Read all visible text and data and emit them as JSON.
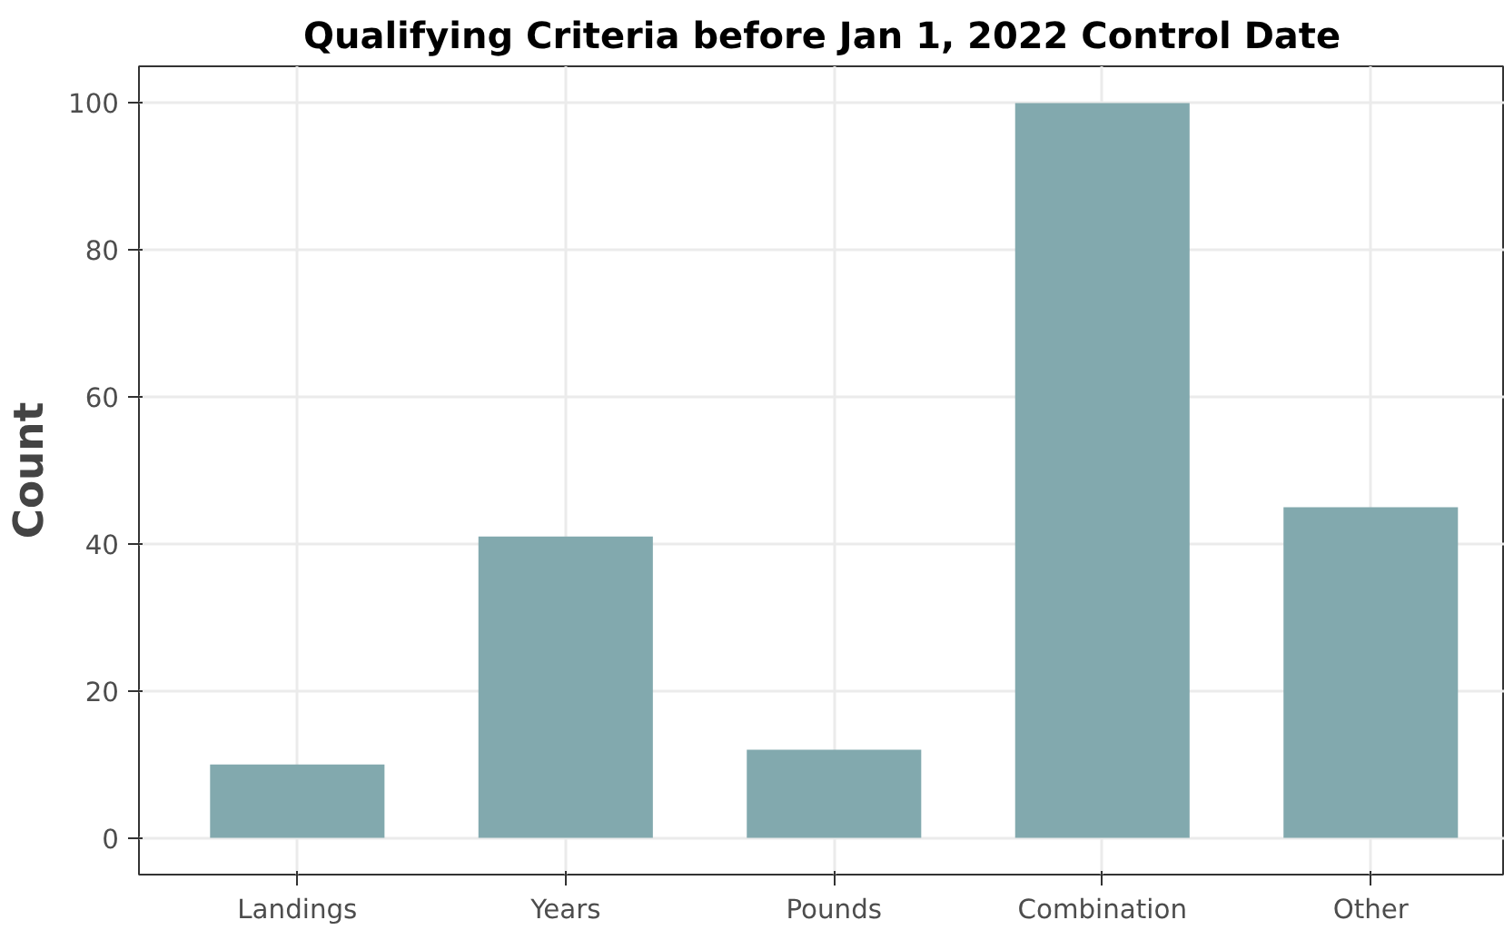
{
  "chart_data": {
    "type": "bar",
    "title": "Qualifying Criteria before Jan 1, 2022 Control Date",
    "ylabel": "Count",
    "categories": [
      "Landings",
      "Years",
      "Pounds",
      "Combination",
      "Other"
    ],
    "values": [
      10,
      41,
      12,
      100,
      45
    ],
    "color": "#82a9ae",
    "ylim": [
      -5,
      105
    ],
    "yticks": [
      0,
      20,
      40,
      60,
      80,
      100
    ],
    "grid": true
  }
}
